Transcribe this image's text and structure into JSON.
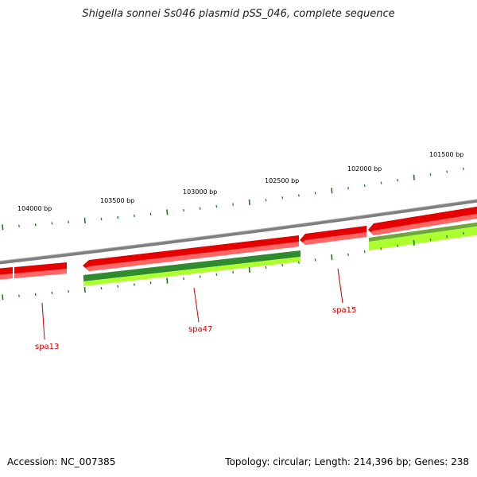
{
  "title": "Shigella sonnei Ss046 plasmid pSS_046, complete sequence",
  "footer": {
    "accession": "Accession: NC_007385",
    "summary": "Topology: circular; Length: 214,396 bp; Genes: 238"
  },
  "colors": {
    "backbone": "#7f7f7f",
    "forward_gene": "#e60000",
    "forward_gene_light": "#ff6666",
    "reverse_dark": "#2e8b2e",
    "reverse_light": "#adff2f",
    "tick": "#1f7a1f",
    "gene_label": "#cc0000"
  },
  "ruler_labels": [
    {
      "label": "104000 bp"
    },
    {
      "label": "103500 bp"
    },
    {
      "label": "103000 bp"
    },
    {
      "label": "102500 bp"
    },
    {
      "label": "102000 bp"
    },
    {
      "label": "101500 bp"
    }
  ],
  "gene_labels": [
    {
      "label": "spa13"
    },
    {
      "label": "spa47"
    },
    {
      "label": "spa15"
    }
  ]
}
